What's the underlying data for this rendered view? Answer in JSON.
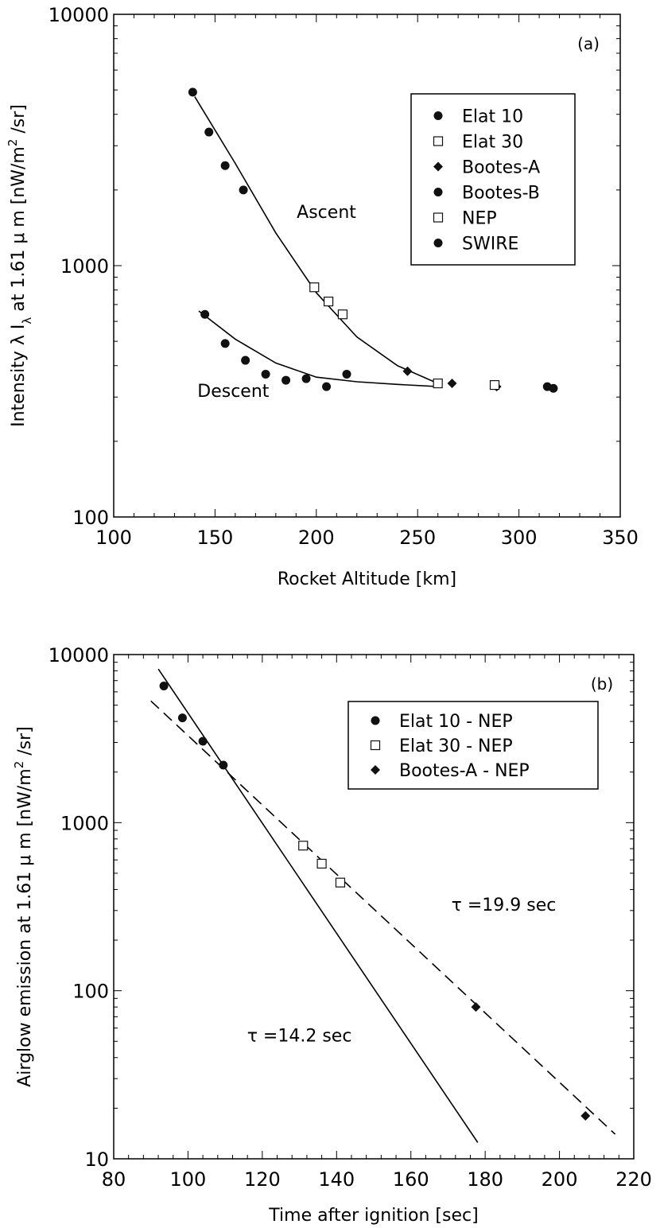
{
  "chart_data": [
    {
      "type": "scatter",
      "panel_label": "(a)",
      "xlabel": "Rocket Altitude [km]",
      "ylabel": "Intensity λIλ at 1.61μm [nW/m²/sr]",
      "ylabel_parts": {
        "pre": "Intensity  λ I",
        "sub": "λ",
        "mid": " at 1.61 μ m [nW/m",
        "sup": "2",
        "post": " /sr]"
      },
      "xlim": [
        100,
        350
      ],
      "ylim": [
        100,
        10000
      ],
      "yscale": "log",
      "x_ticks": [
        100,
        150,
        200,
        250,
        300,
        350
      ],
      "x_tick_labels": [
        "100",
        "150",
        "200",
        "250",
        "300",
        "350"
      ],
      "y_ticks": [
        100,
        1000,
        10000
      ],
      "y_tick_labels": [
        "100",
        "1000",
        "10000"
      ],
      "legend_position": "upper-right",
      "series": [
        {
          "name": "Elat 10",
          "marker": "circle",
          "x": [
            139,
            147,
            155,
            164
          ],
          "y": [
            4900,
            3400,
            2500,
            2000
          ]
        },
        {
          "name": "Elat 30",
          "marker": "square",
          "x": [
            199,
            206,
            213
          ],
          "y": [
            820,
            720,
            640
          ]
        },
        {
          "name": "Bootes-A",
          "marker": "diamond",
          "x": [
            245,
            267,
            289
          ],
          "y": [
            380,
            340,
            330
          ]
        },
        {
          "name": "Bootes-B",
          "marker": "circle",
          "x": [
            145,
            155,
            165,
            175,
            185,
            195,
            205,
            215
          ],
          "y": [
            640,
            490,
            420,
            370,
            350,
            355,
            330,
            370
          ]
        },
        {
          "name": "NEP",
          "marker": "square",
          "x": [
            260,
            288
          ],
          "y": [
            340,
            335
          ]
        },
        {
          "name": "SWIRE",
          "marker": "circle",
          "x": [
            314,
            317
          ],
          "y": [
            330,
            325
          ]
        }
      ],
      "fit_lines": [
        {
          "name": "Ascent fit",
          "style": "solid",
          "x": [
            140,
            160,
            180,
            200,
            220,
            240,
            260
          ],
          "y": [
            4700,
            2550,
            1350,
            780,
            520,
            400,
            340
          ]
        },
        {
          "name": "Descent fit",
          "style": "solid",
          "x": [
            142,
            160,
            180,
            200,
            220,
            240,
            260
          ],
          "y": [
            660,
            510,
            410,
            360,
            345,
            337,
            330
          ]
        }
      ],
      "annotations": [
        {
          "text": "Ascent",
          "x": 205,
          "y": 1550
        },
        {
          "text": "Descent",
          "x": 159,
          "y": 300
        }
      ]
    },
    {
      "type": "scatter",
      "panel_label": "(b)",
      "xlabel": "Time after ignition [sec]",
      "ylabel": "Airglow emission at 1.61μm [nW/m²/sr]",
      "ylabel_parts": {
        "pre": "Airglow emission at 1.61 μ m [nW/m",
        "sup": "2",
        "post": " /sr]"
      },
      "xlim": [
        80,
        220
      ],
      "ylim": [
        10,
        10000
      ],
      "yscale": "log",
      "x_ticks": [
        80,
        100,
        120,
        140,
        160,
        180,
        200,
        220
      ],
      "x_tick_labels": [
        "80",
        "100",
        "120",
        "140",
        "160",
        "180",
        "200",
        "220"
      ],
      "y_ticks": [
        10,
        100,
        1000,
        10000
      ],
      "y_tick_labels": [
        "10",
        "100",
        "1000",
        "10000"
      ],
      "legend_position": "upper-right",
      "series": [
        {
          "name": "Elat 10 - NEP",
          "marker": "circle",
          "x": [
            93.5,
            98.5,
            104,
            109.5
          ],
          "y": [
            6500,
            4200,
            3050,
            2200
          ]
        },
        {
          "name": "Elat 30 - NEP",
          "marker": "square",
          "x": [
            131,
            136,
            141
          ],
          "y": [
            730,
            570,
            440
          ]
        },
        {
          "name": "Bootes-A - NEP",
          "marker": "diamond",
          "x": [
            177.5,
            207
          ],
          "y": [
            80,
            18
          ]
        }
      ],
      "fit_lines": [
        {
          "name": "τ=14.2 sec",
          "style": "solid",
          "x": [
            92,
            178
          ],
          "y": [
            8200,
            12.5
          ]
        },
        {
          "name": "τ=19.9 sec",
          "style": "dashed",
          "x": [
            90,
            215
          ],
          "y": [
            5300,
            14
          ]
        }
      ],
      "annotations": [
        {
          "text": "τ =19.9 sec",
          "x": 185,
          "y": 300
        },
        {
          "text": "τ =14.2 sec",
          "x": 130,
          "y": 50
        }
      ]
    }
  ]
}
